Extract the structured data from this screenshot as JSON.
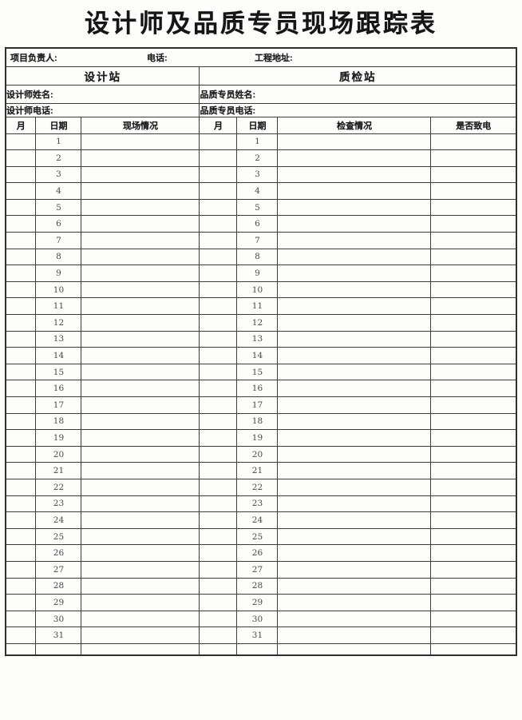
{
  "title": "设计师及品质专员现场跟踪表",
  "form": {
    "info": {
      "manager_label": "项目负责人:",
      "phone_label": "电话:",
      "address_label": "工程地址:"
    },
    "stations": {
      "design_label": "设计站",
      "quality_label": "质检站"
    },
    "designer": {
      "name_label": "设计师姓名:",
      "phone_label": "设计师电话:"
    },
    "specialist": {
      "name_label": "品质专员姓名:",
      "phone_label": "品质专员电话:"
    },
    "columns": [
      "月",
      "日期",
      "现场情况",
      "月",
      "日期",
      "检查情况",
      "是否致电"
    ],
    "days": [
      1,
      2,
      3,
      4,
      5,
      6,
      7,
      8,
      9,
      10,
      11,
      12,
      13,
      14,
      15,
      16,
      17,
      18,
      19,
      20,
      21,
      22,
      23,
      24,
      25,
      26,
      27,
      28,
      29,
      30,
      31
    ]
  },
  "colors": {
    "border": "#3e3e3e",
    "text": "#1d1d1d",
    "day_text": "#4a4a4a",
    "background": "#fdfdfc"
  }
}
